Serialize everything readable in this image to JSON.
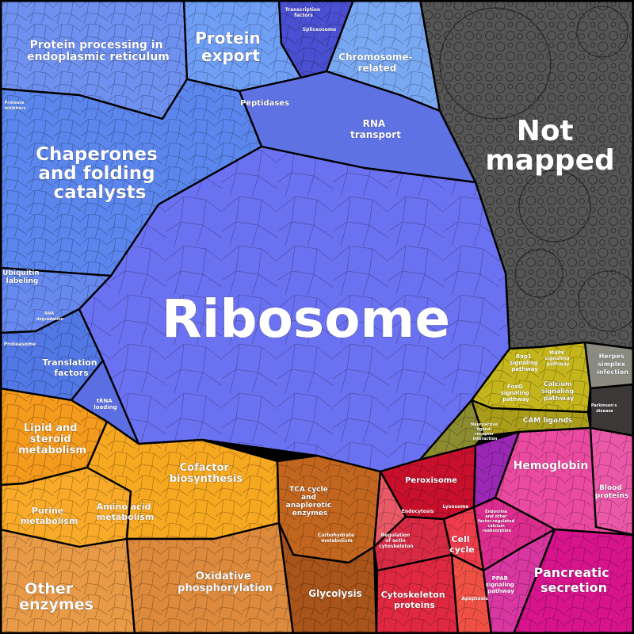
{
  "diagram": {
    "type": "proteomap",
    "colors": {
      "blue_genetic": "#5b7bea",
      "ribosome": "#6a72f0",
      "not_mapped": "#545454",
      "metabolism_orange": "#f29a20",
      "signaling_olive": "#bfae1c",
      "cellular_red": "#d8283c",
      "organismal_pink": "#e0288c"
    },
    "labels": {
      "ribosome": "Ribosome",
      "not_mapped": [
        "Not",
        "mapped"
      ],
      "chaperones": [
        "Chaperones",
        "and folding",
        "catalysts"
      ],
      "protein_processing": [
        "Protein processing in",
        "endoplasmic reticulum"
      ],
      "protein_export": [
        "Protein",
        "export"
      ],
      "chromosome": [
        "Chromosome-",
        "related"
      ],
      "rna_transport": [
        "RNA",
        "transport"
      ],
      "peptidases": "Peptidases",
      "spliceosome": "Spliceosome",
      "transcription_factors": [
        "Transcription",
        "factors"
      ],
      "ubiquitin": [
        "Ubiquitin",
        "labeling"
      ],
      "protease_inhibitors": [
        "Protease",
        "inhibitors"
      ],
      "rna_degradation": [
        "RNA",
        "degradation"
      ],
      "proteasome": "Proteasome",
      "translation_factors": [
        "Translation",
        "factors"
      ],
      "trna_loading": [
        "tRNA",
        "loading"
      ],
      "lipid": [
        "Lipid and",
        "steroid",
        "metabolism"
      ],
      "cofactor": [
        "Cofactor",
        "biosynthesis"
      ],
      "amino_acid": [
        "Amino acid",
        "metabolism"
      ],
      "purine": [
        "Purine",
        "metabolism"
      ],
      "other_enzymes": [
        "Other",
        "enzymes"
      ],
      "oxidative": [
        "Oxidative",
        "phosphorylation"
      ],
      "tca": [
        "TCA cycle",
        "and",
        "anaplerotic",
        "enzymes"
      ],
      "carbohydrate": [
        "Carbohydrate",
        "metabolism"
      ],
      "glycolysis": "Glycolysis",
      "peroxisome": "Peroxisome",
      "lysosome": "Lysosome",
      "endocytosis": "Endocytosis",
      "actin": [
        "Regulation",
        "of actin",
        "cytoskeleton"
      ],
      "cell_cycle": [
        "Cell",
        "cycle"
      ],
      "cytoskeleton": [
        "Cytoskeleton",
        "proteins"
      ],
      "apoptosis": "Apoptosis",
      "rap1": [
        "Rap1",
        "signaling",
        "pathway"
      ],
      "mapk": [
        "MAPK",
        "signaling",
        "pathway"
      ],
      "foxo": [
        "FoxO",
        "signaling",
        "pathway"
      ],
      "calcium": [
        "Calcium",
        "signaling",
        "pathway"
      ],
      "cam": "CAM ligands",
      "herpes": [
        "Herpes",
        "simplex",
        "infection"
      ],
      "parkinsons": [
        "Parkinson's",
        "disease"
      ],
      "hemoglobin": "Hemoglobin",
      "blood_proteins": [
        "Blood",
        "proteins"
      ],
      "pancreatic": [
        "Pancreatic",
        "secretion"
      ],
      "ppar": [
        "PPAR",
        "signaling",
        "pathway"
      ],
      "endocrine": [
        "Endocrine",
        "and other",
        "factor-regulated",
        "calcium",
        "reabsorption"
      ],
      "neuroactive": [
        "Neuroactive",
        "ligand-",
        "receptor",
        "interaction"
      ]
    }
  }
}
